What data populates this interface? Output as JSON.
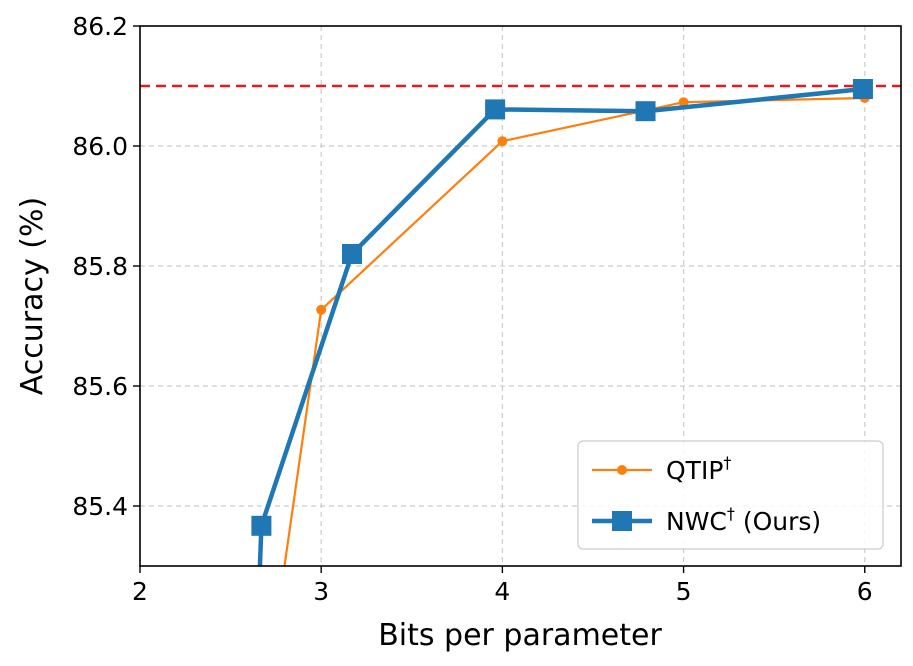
{
  "chart_data": {
    "type": "line",
    "title": "",
    "xlabel": "Bits per parameter",
    "ylabel": "Accuracy (%)",
    "xlim": [
      2,
      6.2
    ],
    "ylim": [
      85.3,
      86.2
    ],
    "xticks": [
      2,
      3,
      4,
      5,
      6
    ],
    "yticks": [
      85.4,
      85.6,
      85.8,
      86.0,
      86.2
    ],
    "xtick_labels": [
      "2",
      "3",
      "4",
      "5",
      "6"
    ],
    "ytick_labels": [
      "85.4",
      "85.6",
      "85.8",
      "86.0",
      "86.2"
    ],
    "grid": true,
    "legend_position": "lower-right",
    "reference_line": {
      "y": 86.1,
      "color": "#e31a1c",
      "style": "dashed"
    },
    "series": [
      {
        "name": "QTIP",
        "name_superscript": "†",
        "name_suffix": "",
        "color": "#ff7f0e",
        "marker": "circle",
        "x": [
          2.75,
          3.0,
          4.0,
          5.0,
          6.0
        ],
        "y": [
          85.2,
          85.727,
          86.008,
          86.073,
          86.08
        ]
      },
      {
        "name": "NWC",
        "name_superscript": "†",
        "name_suffix": " (Ours)",
        "color": "#1f77b4",
        "marker": "square",
        "x": [
          2.65,
          2.67,
          3.17,
          3.96,
          4.79,
          5.99
        ],
        "y": [
          85.2,
          85.367,
          85.82,
          86.061,
          86.058,
          86.095
        ]
      }
    ]
  }
}
